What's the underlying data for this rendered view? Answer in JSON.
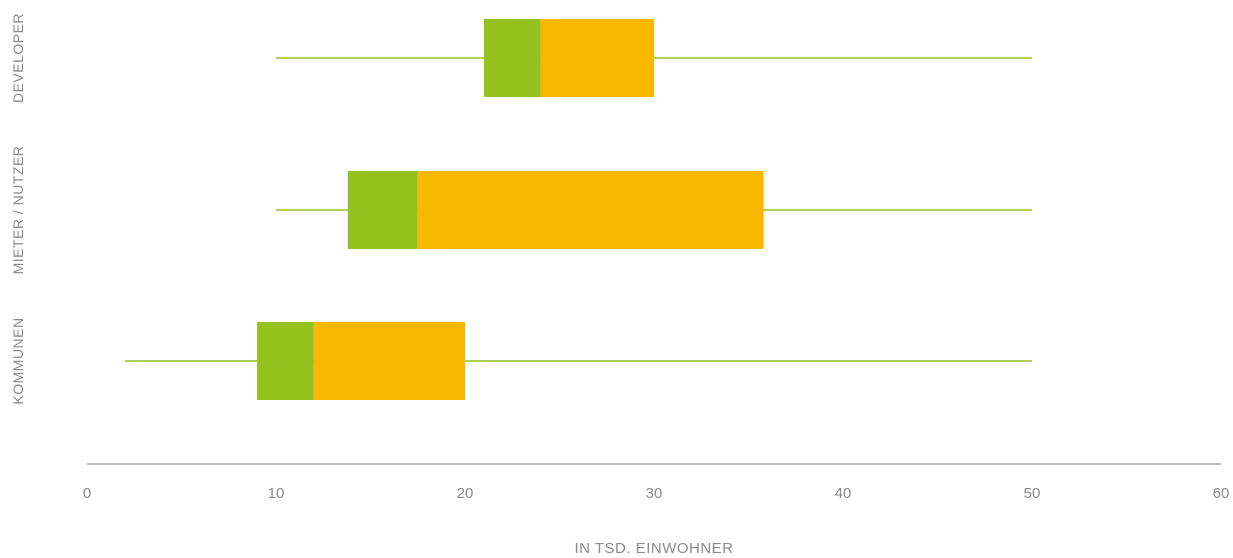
{
  "chart_data": {
    "type": "boxplot",
    "orientation": "horizontal",
    "xlabel": "IN TSD. EINWOHNER",
    "xlim": [
      0,
      60
    ],
    "xticks": [
      0,
      10,
      20,
      30,
      40,
      50,
      60
    ],
    "grid": false,
    "categories": [
      "DEVELOPER",
      "MIETER / NUTZER",
      "KOMMUNEN"
    ],
    "series": [
      {
        "category": "DEVELOPER",
        "min": 10,
        "q1": 21,
        "median": 24,
        "q3": 30,
        "max": 50
      },
      {
        "category": "MIETER / NUTZER",
        "min": 10,
        "q1": 13.8,
        "median": 17.5,
        "q3": 35.8,
        "max": 50
      },
      {
        "category": "KOMMUNEN",
        "min": 2,
        "q1": 9,
        "median": 12,
        "q3": 20,
        "max": 50
      }
    ],
    "colors": {
      "whisker": "#95c11f",
      "lower_box": "#95c11f",
      "upper_box": "#f9b800",
      "axis": "#9a9a9a",
      "text": "#8a8a8a"
    }
  }
}
